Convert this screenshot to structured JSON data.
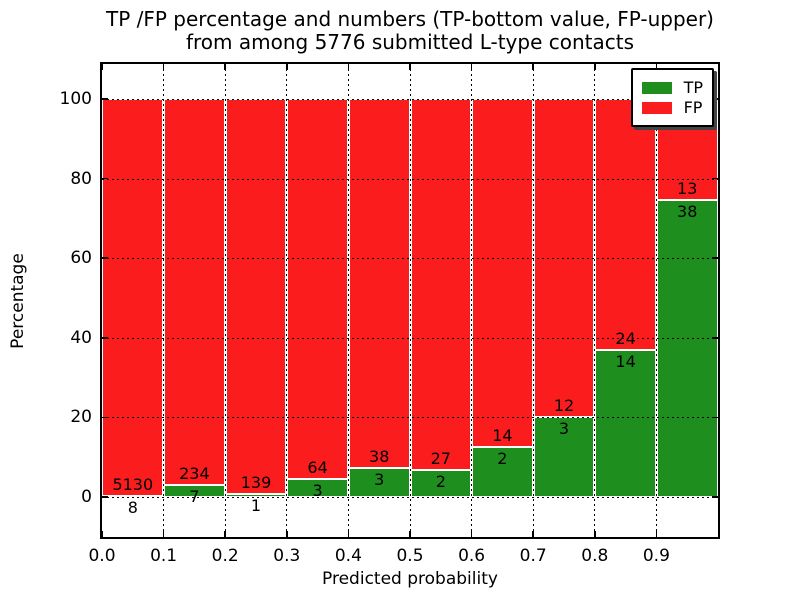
{
  "chart_data": {
    "type": "bar",
    "stacked_percentage": true,
    "title_line1": "TP /FP percentage and numbers (TP-bottom value, FP-upper)",
    "title_line2": "from among 5776 submitted L-type contacts",
    "xlabel": "Predicted probability",
    "ylabel": "Percentage",
    "x_tick_labels": [
      "0.0",
      "0.1",
      "0.2",
      "0.3",
      "0.4",
      "0.5",
      "0.6",
      "0.7",
      "0.8",
      "0.9"
    ],
    "y_tick_values": [
      0,
      20,
      40,
      60,
      80,
      100
    ],
    "xlim": [
      0.0,
      1.0
    ],
    "ylim": [
      -10.6,
      109.4
    ],
    "bin_width": 0.1,
    "bin_starts": [
      0.0,
      0.1,
      0.2,
      0.3,
      0.4,
      0.5,
      0.6,
      0.7,
      0.8,
      0.9
    ],
    "series": [
      {
        "name": "TP",
        "color": "#1e8f1e",
        "values": [
          8,
          7,
          1,
          3,
          3,
          2,
          2,
          3,
          14,
          38
        ]
      },
      {
        "name": "FP",
        "color": "#fb1d1d",
        "values": [
          5130,
          234,
          139,
          64,
          38,
          27,
          14,
          12,
          24,
          13
        ]
      }
    ],
    "total_submitted": 5776,
    "grid": "dotted",
    "legend": {
      "position": "upper right",
      "entries": [
        {
          "label": "TP",
          "color": "#1e8f1e"
        },
        {
          "label": "FP",
          "color": "#fb1d1d"
        }
      ]
    }
  }
}
